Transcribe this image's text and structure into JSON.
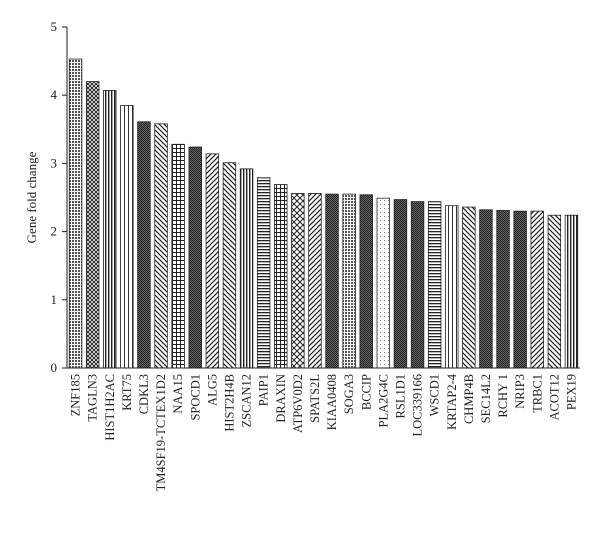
{
  "chart_data": {
    "type": "bar",
    "title": "",
    "xlabel": "",
    "ylabel": "Gene fold change",
    "ylim": [
      0,
      5
    ],
    "yticks": [
      0,
      1,
      2,
      3,
      4,
      5
    ],
    "grid": false,
    "legend": "none",
    "categories": [
      "ZNF185",
      "TAGLN3",
      "HIST1H2AC",
      "KRT75",
      "CDKL3",
      "TM4SF19-TCTEX1D2",
      "NAA15",
      "SPOCD1",
      "ALG5",
      "HIST2H4B",
      "ZSCAN12",
      "PAIP1",
      "DRAXIN",
      "ATP6V0D2",
      "SPATS2L",
      "KIAA0408",
      "SOGA3",
      "BCCIP",
      "PLA2G4C",
      "RSL1D1",
      "LOC339166",
      "WSCD1",
      "KRTAP2-4",
      "CHMP4B",
      "SEC14L2",
      "RCHY 1",
      "NRIP3",
      "TRBC1",
      "ACOT12",
      "PEX19"
    ],
    "values": [
      4.53,
      4.2,
      4.07,
      3.85,
      3.61,
      3.58,
      3.28,
      3.24,
      3.14,
      3.01,
      2.92,
      2.79,
      2.69,
      2.56,
      2.56,
      2.55,
      2.55,
      2.54,
      2.49,
      2.47,
      2.44,
      2.44,
      2.38,
      2.36,
      2.32,
      2.31,
      2.3,
      2.3,
      2.24,
      2.24
    ],
    "patterns": [
      "dots",
      "cross",
      "vstripe",
      "vwide",
      "dense",
      "hatchdown",
      "grid",
      "dense",
      "hatchup",
      "hatchdown",
      "vstripe",
      "hstripe",
      "grid",
      "xcross",
      "hatchup",
      "dense",
      "dots",
      "dense",
      "sparse",
      "dense",
      "dense",
      "hstripe",
      "vwide",
      "hatchdown",
      "dense",
      "dense",
      "dense",
      "hatchup",
      "hatchdown",
      "vstripe"
    ]
  }
}
